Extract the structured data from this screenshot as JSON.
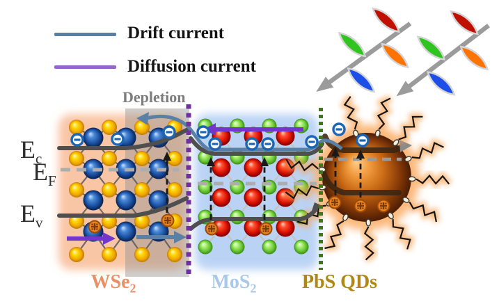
{
  "legend": {
    "drift": {
      "label": "Drift current",
      "color": "#5a7fa0"
    },
    "diffusion": {
      "label": "Diffusion current",
      "color": "#9565c8"
    }
  },
  "depletion": {
    "label": "Depletion",
    "box_color": "#8f8f8f",
    "text_color": "#7d7d7d"
  },
  "energy_levels": {
    "conduction": {
      "base": "E",
      "sub": "c"
    },
    "fermi": {
      "base": "E",
      "sub": "F"
    },
    "valence": {
      "base": "E",
      "sub": "v"
    },
    "band_color": "#4f4f4f",
    "fermi_line_color": "#adadad"
  },
  "regions": [
    {
      "id": "wse2",
      "label": "WSe",
      "label_sub": "2",
      "label_color": "#ea9066",
      "glow_color": "#f4975c",
      "atoms": {
        "se_color": "#ffd90a",
        "w_color": "#1a4fa0"
      }
    },
    {
      "id": "mos2",
      "label": "MoS",
      "label_sub": "2",
      "label_color": "#a9c9ea",
      "glow_color": "#78a8ec",
      "atoms": {
        "s_color": "#a8ef70",
        "mo_color": "#d81000"
      }
    },
    {
      "id": "pbs_qd",
      "label": "PbS QDs",
      "label_sub": "",
      "label_color": "#b08714",
      "glow_color": "#f9a658",
      "sphere_color": "#cc6c16",
      "ligand_color": "#141414"
    }
  ],
  "interfaces": [
    {
      "between": "WSe2|MoS2",
      "style": "dashed",
      "color": "#7030a0"
    },
    {
      "between": "MoS2|PbS QDs",
      "style": "dotted",
      "color": "#41761c"
    }
  ],
  "carriers": {
    "electron": {
      "symbol": "-",
      "color": "#1a65b5"
    },
    "hole": {
      "symbol": "+",
      "color": "#e8831f",
      "outline": "#9c4a08"
    }
  },
  "arrows": {
    "drift_color": "#5b80a5",
    "diffusion_color": "#7236cc",
    "transition_color": "#1a1a1a",
    "band_end_arrow_color": "#8a8a8a"
  },
  "light_pulses": {
    "count": 2,
    "arrow_color": "#9b9b9b",
    "wave_colors": [
      "#1d4fe8",
      "#2fc41f",
      "#ff7300",
      "#c01000"
    ]
  }
}
